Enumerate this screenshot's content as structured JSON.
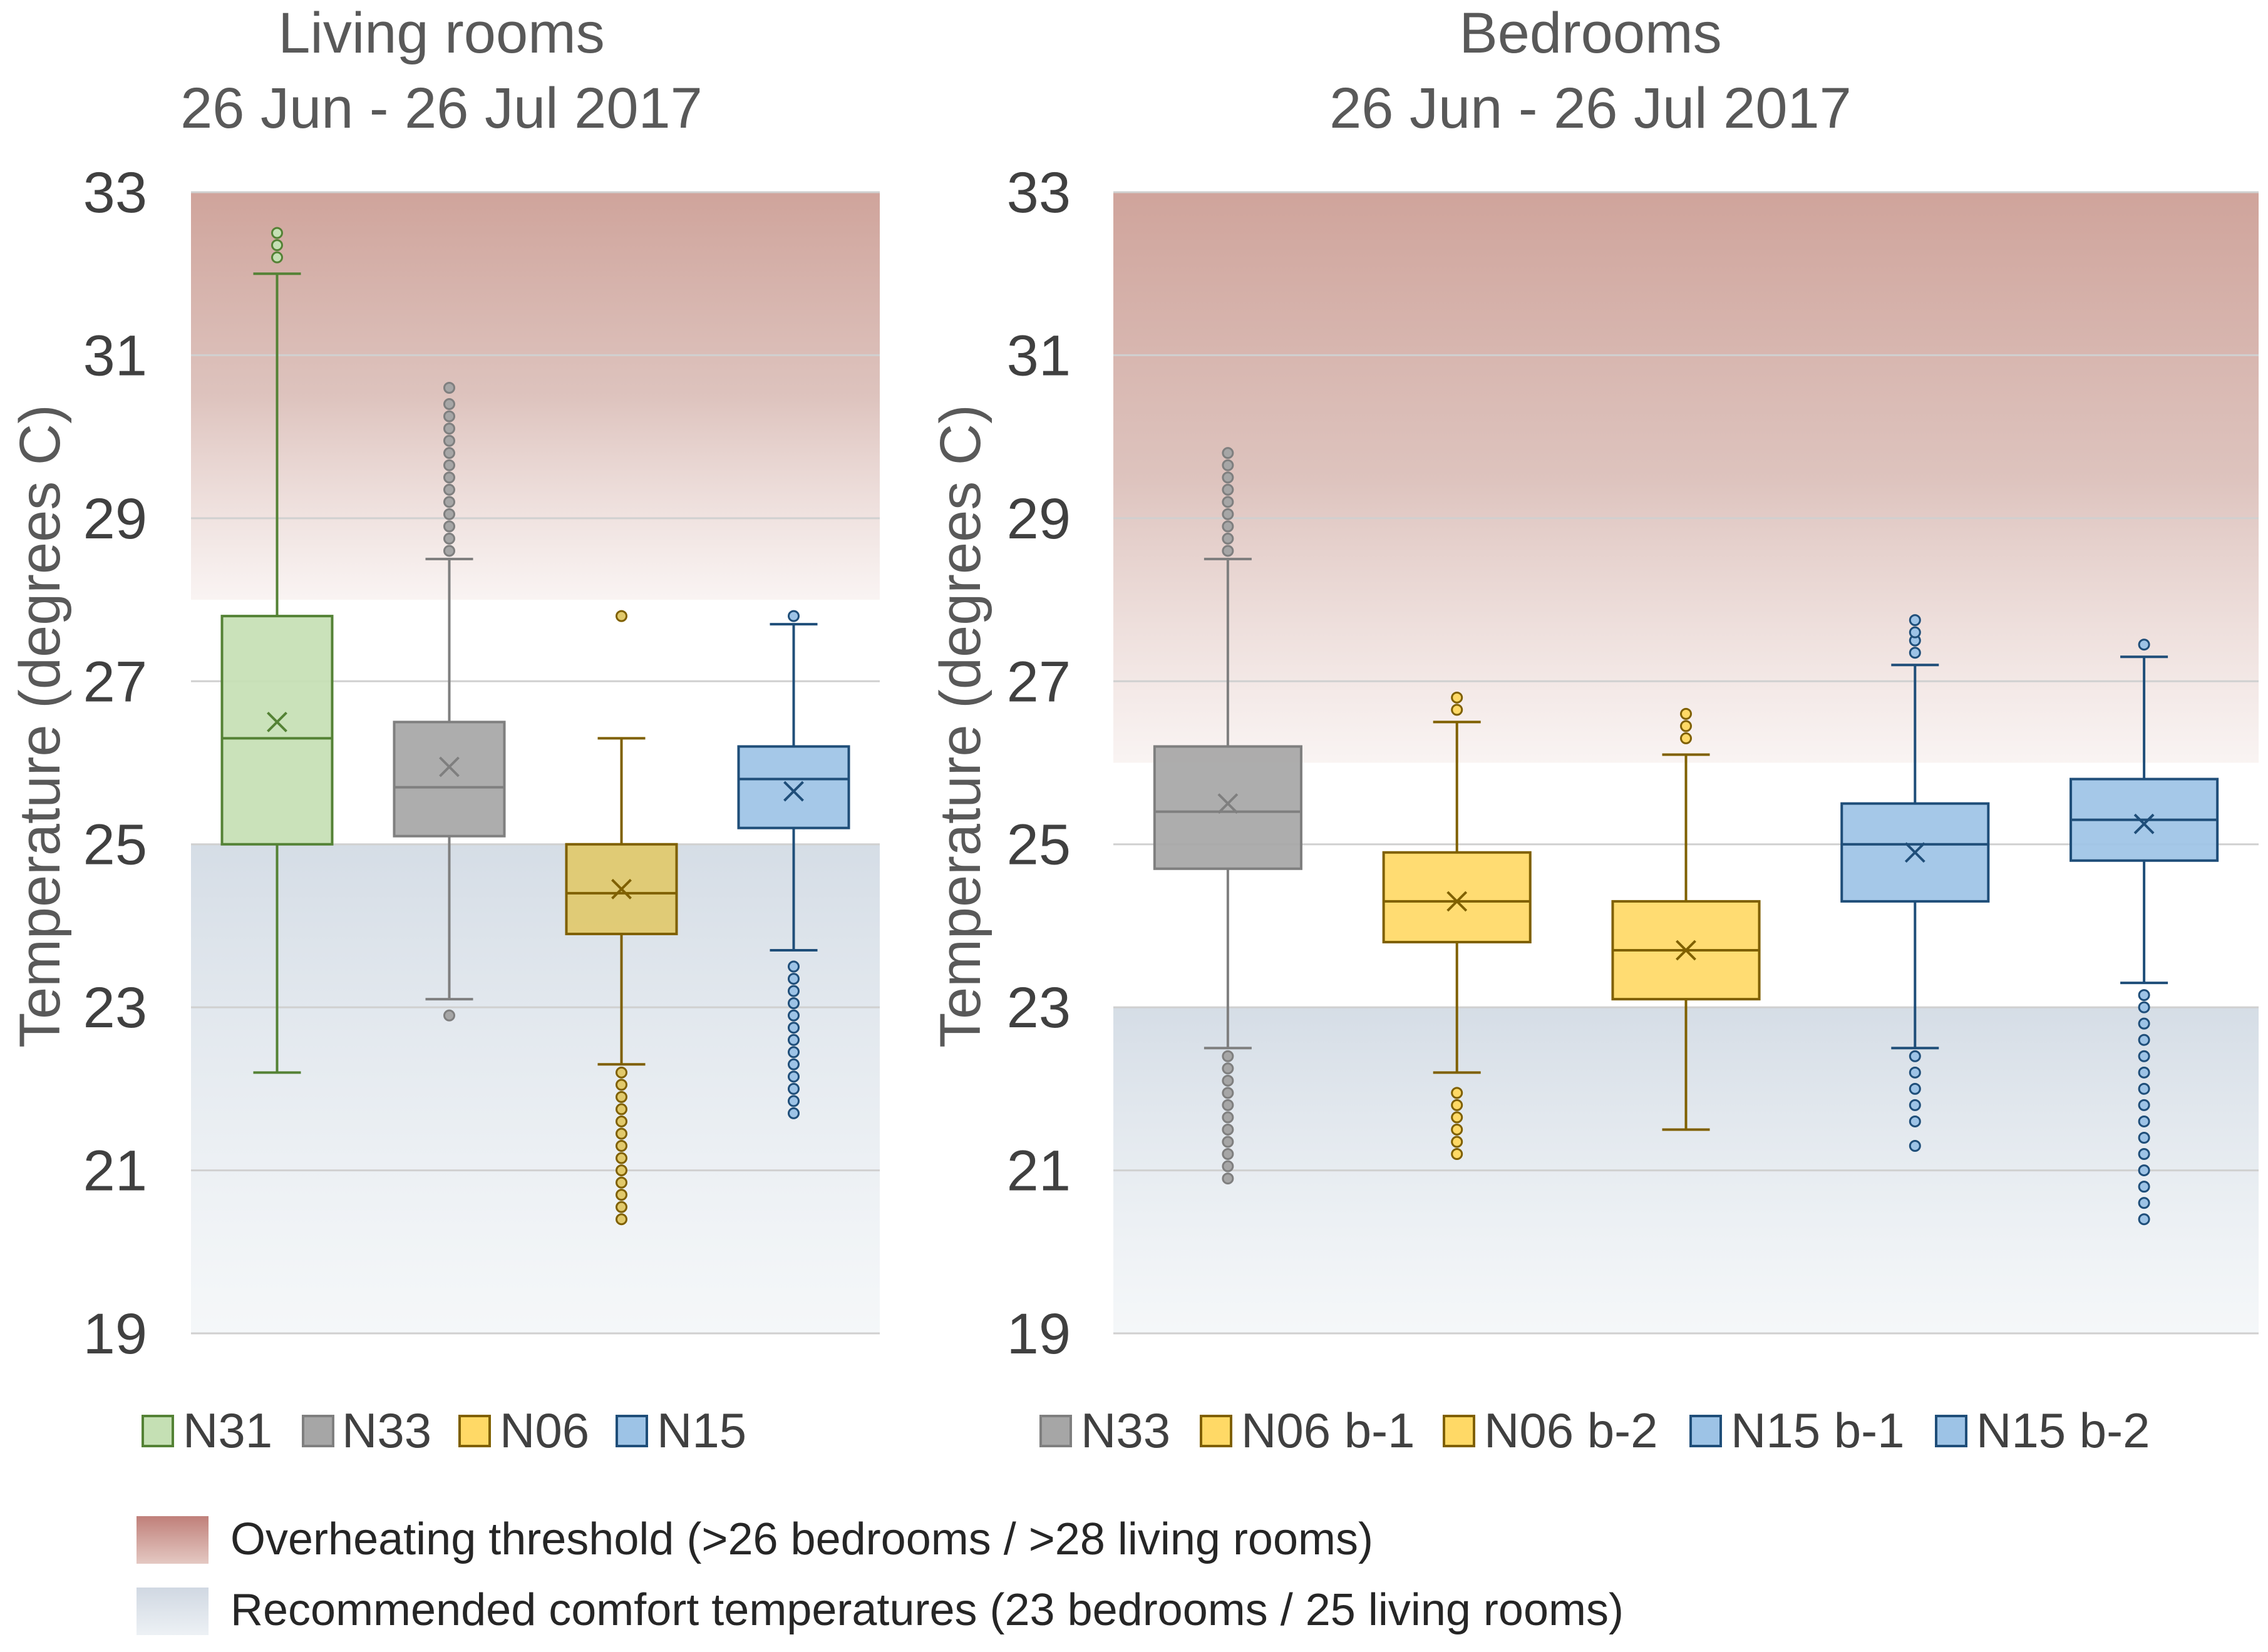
{
  "chart_data": [
    {
      "type": "box",
      "title": "Living rooms",
      "subtitle": "26 Jun - 26 Jul 2017",
      "ylabel": "Temperature (degrees C)",
      "ylim": [
        19,
        33
      ],
      "yticks": [
        "33",
        "31",
        "29",
        "27",
        "25",
        "23",
        "21",
        "19"
      ],
      "overheating_threshold": 28,
      "comfort_upper": 25,
      "series": [
        {
          "name": "N31",
          "color": "#c5e0b4",
          "stroke": "#548235",
          "q1": 25.0,
          "median": 26.3,
          "q3": 27.8,
          "mean": 26.5,
          "whisker_low": 22.2,
          "whisker_high": 32.0,
          "outliers": [
            32.2,
            32.35,
            32.5
          ]
        },
        {
          "name": "N33",
          "color": "#a6a6a6",
          "stroke": "#7f7f7f",
          "q1": 25.1,
          "median": 25.7,
          "q3": 26.5,
          "mean": 25.95,
          "whisker_low": 23.1,
          "whisker_high": 28.5,
          "outliers": [
            22.9,
            28.6,
            28.75,
            28.9,
            29.05,
            29.2,
            29.35,
            29.5,
            29.65,
            29.8,
            29.95,
            30.1,
            30.25,
            30.4,
            30.6
          ]
        },
        {
          "name": "N06",
          "color": "#e1c96b",
          "stroke": "#7f6000",
          "q1": 23.9,
          "median": 24.4,
          "q3": 25.0,
          "mean": 24.45,
          "whisker_low": 22.3,
          "whisker_high": 26.3,
          "outliers": [
            27.8,
            20.4,
            20.55,
            20.7,
            20.85,
            21.0,
            21.15,
            21.3,
            21.45,
            21.6,
            21.75,
            21.9,
            22.05,
            22.2
          ]
        },
        {
          "name": "N15",
          "color": "#9dc3e6",
          "stroke": "#1f4e79",
          "q1": 25.2,
          "median": 25.8,
          "q3": 26.2,
          "mean": 25.65,
          "whisker_low": 23.7,
          "whisker_high": 27.7,
          "outliers": [
            27.8,
            21.7,
            21.85,
            22.0,
            22.15,
            22.3,
            22.45,
            22.6,
            22.75,
            22.9,
            23.05,
            23.2,
            23.35,
            23.5
          ]
        }
      ]
    },
    {
      "type": "box",
      "title": "Bedrooms",
      "subtitle": "26 Jun - 26 Jul 2017",
      "ylabel": "Temperature (degrees C)",
      "ylim": [
        19,
        33
      ],
      "yticks": [
        "33",
        "31",
        "29",
        "27",
        "25",
        "23",
        "21",
        "19"
      ],
      "overheating_threshold": 26,
      "comfort_upper": 23,
      "series": [
        {
          "name": "N33",
          "color": "#a6a6a6",
          "stroke": "#7f7f7f",
          "q1": 24.7,
          "median": 25.4,
          "q3": 26.2,
          "mean": 25.5,
          "whisker_low": 22.5,
          "whisker_high": 28.5,
          "outliers": [
            28.6,
            28.75,
            28.9,
            29.05,
            29.2,
            29.35,
            29.5,
            29.65,
            29.8,
            20.9,
            21.05,
            21.2,
            21.35,
            21.5,
            21.65,
            21.8,
            21.95,
            22.1,
            22.25,
            22.4
          ]
        },
        {
          "name": "N06 b-1",
          "color": "#ffd966",
          "stroke": "#7f6000",
          "q1": 23.8,
          "median": 24.3,
          "q3": 24.9,
          "mean": 24.3,
          "whisker_low": 22.2,
          "whisker_high": 26.5,
          "outliers": [
            26.65,
            26.8,
            21.2,
            21.35,
            21.5,
            21.65,
            21.8,
            21.95
          ]
        },
        {
          "name": "N06 b-2",
          "color": "#ffd966",
          "stroke": "#7f6000",
          "q1": 23.1,
          "median": 23.7,
          "q3": 24.3,
          "mean": 23.7,
          "whisker_low": 21.5,
          "whisker_high": 26.1,
          "outliers": [
            26.3,
            26.45,
            26.6
          ]
        },
        {
          "name": "N15 b-1",
          "color": "#9dc3e6",
          "stroke": "#1f4e79",
          "q1": 24.3,
          "median": 25.0,
          "q3": 25.5,
          "mean": 24.9,
          "whisker_low": 22.5,
          "whisker_high": 27.2,
          "outliers": [
            27.35,
            27.5,
            27.6,
            27.75,
            21.3,
            21.6,
            21.8,
            22.0,
            22.2,
            22.4
          ]
        },
        {
          "name": "N15 b-2",
          "color": "#9dc3e6",
          "stroke": "#1f4e79",
          "q1": 24.8,
          "median": 25.3,
          "q3": 25.8,
          "mean": 25.25,
          "whisker_low": 23.3,
          "whisker_high": 27.3,
          "outliers": [
            27.45,
            20.4,
            20.6,
            20.8,
            21.0,
            21.2,
            21.4,
            21.6,
            21.8,
            22.0,
            22.2,
            22.4,
            22.6,
            22.8,
            23.0,
            23.15
          ]
        }
      ]
    }
  ],
  "legend_notes": [
    {
      "label": "Overheating threshold (>26 bedrooms / >28 living rooms)",
      "color": "#c0807a"
    },
    {
      "label": "Recommended comfort temperatures (23 bedrooms / 25 living rooms)",
      "color": "#d5dde6"
    }
  ]
}
